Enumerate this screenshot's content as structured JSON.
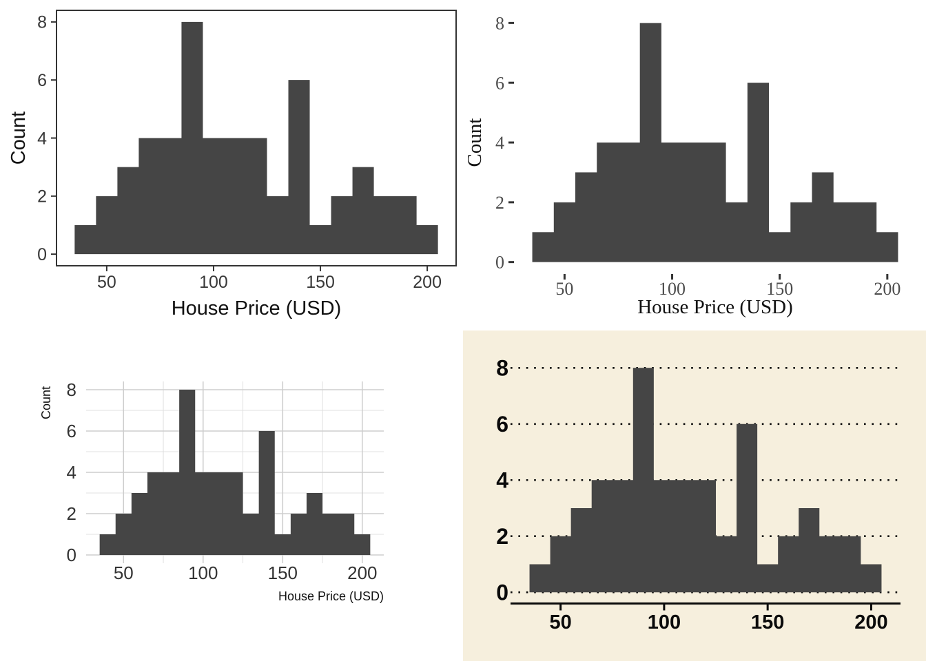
{
  "page": {
    "background": "#ffffff",
    "description_labels": {
      "x_axis_title": "House Price (USD)",
      "y_axis_title": "Count"
    }
  },
  "colors": {
    "bar_fill": "#454545",
    "axis_dark": "#333333",
    "tick_label_classic": "#383838",
    "tick_label_serif": "#4d4d4d",
    "tick_label_minimal": "#333333",
    "title_color": "#111111",
    "grid_major": "#cdcdcd",
    "grid_minor": "#e0e0e0",
    "wsj_background": "#f6efdd",
    "wsj_ink": "#0a0a0a"
  },
  "chart_data": [
    {
      "id": "top_left",
      "type": "bar",
      "subtype": "histogram",
      "theme": "classic-bordered",
      "title": "",
      "xlabel": "House Price (USD)",
      "ylabel": "Count",
      "bin_start": 35,
      "bin_width": 10,
      "values": [
        1,
        2,
        3,
        4,
        4,
        8,
        4,
        4,
        4,
        2,
        6,
        1,
        2,
        3,
        2,
        2,
        1
      ],
      "x_ticks": [
        50,
        100,
        150,
        200
      ],
      "y_ticks": [
        0,
        2,
        4,
        6,
        8
      ],
      "xlim": [
        26.5,
        213.5
      ],
      "ylim": [
        -0.4,
        8.4
      ],
      "grid": "off",
      "legend": "none"
    },
    {
      "id": "top_right",
      "type": "bar",
      "subtype": "histogram",
      "theme": "serif-ticks",
      "title": "",
      "xlabel": "House Price (USD)",
      "ylabel": "Count",
      "bin_start": 35,
      "bin_width": 10,
      "values": [
        1,
        2,
        3,
        4,
        4,
        8,
        4,
        4,
        4,
        2,
        6,
        1,
        2,
        3,
        2,
        2,
        1
      ],
      "x_ticks": [
        50,
        100,
        150,
        200
      ],
      "y_ticks": [
        0,
        2,
        4,
        6,
        8
      ],
      "xlim": [
        26.5,
        213.5
      ],
      "ylim": [
        -0.4,
        8.4
      ],
      "grid": "off",
      "legend": "none"
    },
    {
      "id": "bottom_left",
      "type": "bar",
      "subtype": "histogram",
      "theme": "minimal-grid",
      "title": "",
      "xlabel": "House Price (USD)",
      "ylabel": "Count",
      "bin_start": 35,
      "bin_width": 10,
      "values": [
        1,
        2,
        3,
        4,
        4,
        8,
        4,
        4,
        4,
        2,
        6,
        1,
        2,
        3,
        2,
        2,
        1
      ],
      "x_ticks": [
        50,
        100,
        150,
        200
      ],
      "y_ticks": [
        0,
        2,
        4,
        6,
        8
      ],
      "x_minor_ticks": [
        75,
        125,
        175
      ],
      "y_minor_ticks": [
        1,
        3,
        5,
        7
      ],
      "xlim": [
        26.5,
        213.5
      ],
      "ylim": [
        -0.4,
        8.4
      ],
      "grid": "major-minor",
      "legend": "none"
    },
    {
      "id": "bottom_right",
      "type": "bar",
      "subtype": "histogram",
      "theme": "wsj-beige",
      "title": "",
      "xlabel": "",
      "ylabel": "",
      "bin_start": 35,
      "bin_width": 10,
      "values": [
        1,
        2,
        3,
        4,
        4,
        8,
        4,
        4,
        4,
        2,
        6,
        1,
        2,
        3,
        2,
        2,
        1
      ],
      "x_ticks": [
        50,
        100,
        150,
        200
      ],
      "y_ticks": [
        0,
        2,
        4,
        6,
        8
      ],
      "xlim": [
        26.5,
        213.5
      ],
      "ylim": [
        -0.4,
        8.4
      ],
      "grid": "dotted-horizontal",
      "legend": "none"
    }
  ]
}
